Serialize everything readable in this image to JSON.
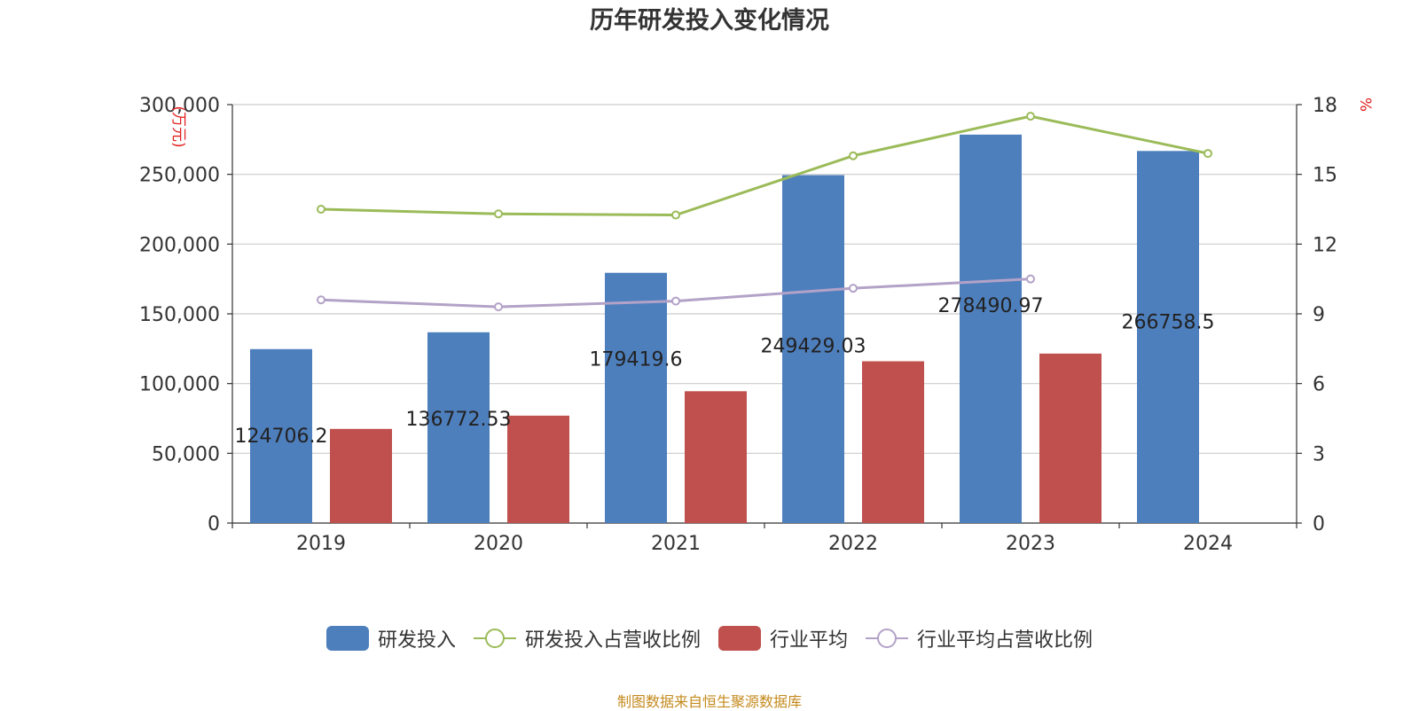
{
  "chart_data": {
    "type": "bar",
    "title": "历年研发投入变化情况",
    "categories": [
      "2019",
      "2020",
      "2021",
      "2022",
      "2023",
      "2024"
    ],
    "left_axis": {
      "unit_label": "(万元)",
      "ylim": [
        0,
        300000
      ],
      "ticks": [
        "0",
        "50,000",
        "100,000",
        "150,000",
        "200,000",
        "250,000",
        "300,000"
      ]
    },
    "right_axis": {
      "unit_label": "%",
      "ylim": [
        0,
        18
      ],
      "ticks": [
        "0",
        "3",
        "6",
        "9",
        "12",
        "15",
        "18"
      ]
    },
    "series": [
      {
        "name": "研发投入",
        "kind": "bar",
        "axis": "left",
        "color": "#4e7fbd",
        "values": [
          124706.2,
          136772.53,
          179419.6,
          249429.03,
          278490.97,
          266758.5
        ],
        "labels": [
          "124706.2",
          "136772.53",
          "179419.6",
          "249429.03",
          "278490.97",
          "266758.5"
        ]
      },
      {
        "name": "行业平均",
        "kind": "bar",
        "axis": "left",
        "color": "#c0504d",
        "values": [
          67500,
          77000,
          94500,
          116000,
          121500,
          null
        ]
      },
      {
        "name": "研发投入占营收比例",
        "kind": "line",
        "axis": "right",
        "color": "#9bbb59",
        "values": [
          13.5,
          13.3,
          13.25,
          15.8,
          17.5,
          15.9
        ]
      },
      {
        "name": "行业平均占营收比例",
        "kind": "line",
        "axis": "right",
        "color": "#b3a2c7",
        "values": [
          9.6,
          9.3,
          9.55,
          10.1,
          10.5,
          null
        ]
      }
    ],
    "grid": true,
    "legend_position": "bottom-center"
  },
  "source": "制图数据来自恒生聚源数据库"
}
